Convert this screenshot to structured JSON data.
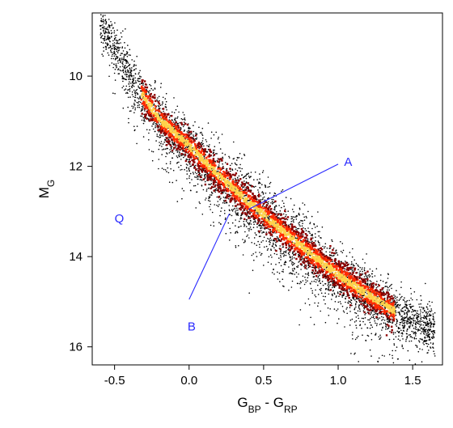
{
  "chart_data": {
    "type": "scatter",
    "title": "",
    "xlabel": {
      "main": "G",
      "sub1": "BP",
      "sep": " - ",
      "main2": "G",
      "sub2": "RP"
    },
    "ylabel": {
      "main": "M",
      "sub": "G"
    },
    "xlim": [
      -0.65,
      1.7
    ],
    "ylim": [
      16.4,
      8.6
    ],
    "y_inverted": true,
    "xticks": [
      {
        "value": -0.5,
        "label": "-0.5"
      },
      {
        "value": 0.0,
        "label": "0.0"
      },
      {
        "value": 0.5,
        "label": "0.5"
      },
      {
        "value": 1.0,
        "label": "1.0"
      },
      {
        "value": 1.5,
        "label": "1.5"
      }
    ],
    "yticks": [
      {
        "value": 10,
        "label": "10"
      },
      {
        "value": 12,
        "label": "12"
      },
      {
        "value": 14,
        "label": "14"
      },
      {
        "value": 16,
        "label": "16"
      }
    ],
    "grid": false,
    "colors": {
      "points": "#000000",
      "density_low": "#8b0000",
      "density_mid": "#ff2a00",
      "density_high": "#ffd24a",
      "annotation": "#2a2aff"
    },
    "main_sequence": [
      {
        "x": -0.58,
        "y": 8.9
      },
      {
        "x": -0.45,
        "y": 9.7
      },
      {
        "x": -0.35,
        "y": 10.3
      },
      {
        "x": -0.2,
        "y": 11.0
      },
      {
        "x": 0.0,
        "y": 11.6
      },
      {
        "x": 0.2,
        "y": 12.25
      },
      {
        "x": 0.4,
        "y": 12.85
      },
      {
        "x": 0.6,
        "y": 13.4
      },
      {
        "x": 0.8,
        "y": 13.95
      },
      {
        "x": 1.0,
        "y": 14.45
      },
      {
        "x": 1.2,
        "y": 14.9
      },
      {
        "x": 1.4,
        "y": 15.3
      },
      {
        "x": 1.62,
        "y": 15.6
      }
    ],
    "annotations": [
      {
        "label": "A",
        "line_from": [
          0.4,
          12.95
        ],
        "line_to": [
          1.0,
          11.95
        ],
        "text_at": [
          1.04,
          11.9
        ]
      },
      {
        "label": "B",
        "line_from": [
          0.27,
          13.05
        ],
        "line_to": [
          0.0,
          14.95
        ],
        "text_at": [
          -0.01,
          15.55
        ]
      },
      {
        "label": "Q",
        "text_at": [
          -0.5,
          13.15
        ]
      }
    ]
  }
}
